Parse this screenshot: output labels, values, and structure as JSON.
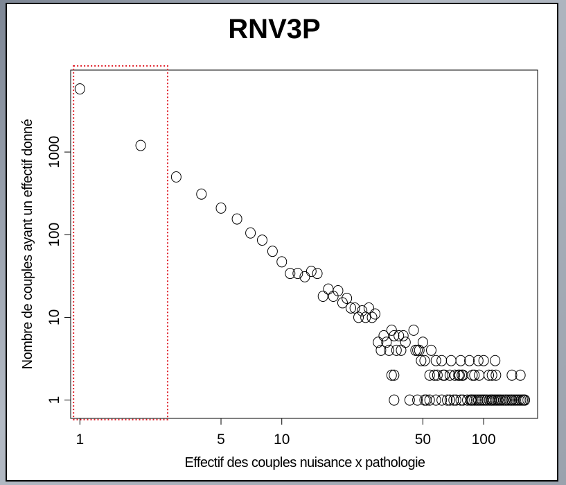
{
  "chart_data": {
    "type": "scatter",
    "title": "RNV3P",
    "xlabel": "Effectif des couples nuisance x pathologie",
    "ylabel": "Nombre de couples ayant un effectif donné",
    "x_scale": "log",
    "y_scale": "log",
    "xlim": [
      0.9,
      185
    ],
    "ylim": [
      0.6,
      9800
    ],
    "x_ticks": [
      {
        "value": 1,
        "label": "1"
      },
      {
        "value": 5,
        "label": "5"
      },
      {
        "value": 10,
        "label": "10"
      },
      {
        "value": 50,
        "label": "50"
      },
      {
        "value": 100,
        "label": "100"
      }
    ],
    "y_ticks": [
      {
        "value": 1,
        "label": "1"
      },
      {
        "value": 10,
        "label": "10"
      },
      {
        "value": 100,
        "label": "100"
      },
      {
        "value": 1000,
        "label": "1000"
      }
    ],
    "highlight_box": {
      "x_range": [
        0.93,
        2.72
      ],
      "y_range": [
        0.58,
        11000
      ],
      "color": "#e0202a",
      "style": "dotted"
    },
    "points": [
      [
        1,
        5800
      ],
      [
        2,
        1200
      ],
      [
        3,
        500
      ],
      [
        4,
        310
      ],
      [
        5,
        210
      ],
      [
        6,
        155
      ],
      [
        7,
        105
      ],
      [
        8,
        86
      ],
      [
        9,
        63
      ],
      [
        10,
        47
      ],
      [
        11,
        34
      ],
      [
        12,
        34
      ],
      [
        13,
        31
      ],
      [
        14,
        36
      ],
      [
        15,
        34
      ],
      [
        16,
        18
      ],
      [
        17,
        22
      ],
      [
        18,
        18
      ],
      [
        19,
        21
      ],
      [
        20,
        15
      ],
      [
        21,
        17
      ],
      [
        22,
        13
      ],
      [
        23,
        13
      ],
      [
        24,
        10
      ],
      [
        25,
        12
      ],
      [
        26,
        10
      ],
      [
        27,
        13
      ],
      [
        28,
        10
      ],
      [
        29,
        11
      ],
      [
        30,
        5
      ],
      [
        31,
        4
      ],
      [
        32,
        6
      ],
      [
        33,
        5
      ],
      [
        34,
        4
      ],
      [
        35,
        7
      ],
      [
        36,
        6
      ],
      [
        37,
        4
      ],
      [
        38,
        6
      ],
      [
        39,
        4
      ],
      [
        40,
        6
      ],
      [
        41,
        5
      ],
      [
        35,
        2
      ],
      [
        36,
        2
      ],
      [
        36,
        1
      ],
      [
        45,
        7
      ],
      [
        46,
        4
      ],
      [
        47,
        4
      ],
      [
        48,
        4
      ],
      [
        49,
        3
      ],
      [
        50,
        5
      ],
      [
        51,
        3
      ],
      [
        54,
        2
      ],
      [
        55,
        4
      ],
      [
        57,
        2
      ],
      [
        58,
        3
      ],
      [
        59,
        2
      ],
      [
        62,
        3
      ],
      [
        63,
        2
      ],
      [
        64,
        2
      ],
      [
        68,
        2
      ],
      [
        69,
        3
      ],
      [
        72,
        2
      ],
      [
        75,
        2
      ],
      [
        76,
        2
      ],
      [
        77,
        3
      ],
      [
        78,
        2
      ],
      [
        79,
        2
      ],
      [
        85,
        3
      ],
      [
        88,
        2
      ],
      [
        90,
        2
      ],
      [
        94,
        3
      ],
      [
        95,
        2
      ],
      [
        100,
        3
      ],
      [
        106,
        2
      ],
      [
        110,
        2
      ],
      [
        114,
        3
      ],
      [
        115,
        2
      ],
      [
        138,
        2
      ],
      [
        152,
        2
      ],
      [
        43,
        1
      ],
      [
        47,
        1
      ],
      [
        51,
        1
      ],
      [
        52,
        1
      ],
      [
        54,
        1
      ],
      [
        58,
        1
      ],
      [
        62,
        1
      ],
      [
        66,
        1
      ],
      [
        68,
        1
      ],
      [
        71,
        1
      ],
      [
        73,
        1
      ],
      [
        77,
        1
      ],
      [
        79,
        1
      ],
      [
        83,
        1
      ],
      [
        86,
        1
      ],
      [
        87,
        1
      ],
      [
        88,
        1
      ],
      [
        90,
        1
      ],
      [
        92,
        1
      ],
      [
        94,
        1
      ],
      [
        96,
        1
      ],
      [
        98,
        1
      ],
      [
        100,
        1
      ],
      [
        102,
        1
      ],
      [
        104,
        1
      ],
      [
        107,
        1
      ],
      [
        109,
        1
      ],
      [
        110,
        1
      ],
      [
        112,
        1
      ],
      [
        114,
        1
      ],
      [
        116,
        1
      ],
      [
        118,
        1
      ],
      [
        120,
        1
      ],
      [
        122,
        1
      ],
      [
        125,
        1
      ],
      [
        128,
        1
      ],
      [
        130,
        1
      ],
      [
        133,
        1
      ],
      [
        136,
        1
      ],
      [
        138,
        1
      ],
      [
        141,
        1
      ],
      [
        144,
        1
      ],
      [
        147,
        1
      ],
      [
        150,
        1
      ],
      [
        153,
        1
      ],
      [
        156,
        1
      ],
      [
        158,
        1
      ],
      [
        160,
        1
      ]
    ]
  }
}
